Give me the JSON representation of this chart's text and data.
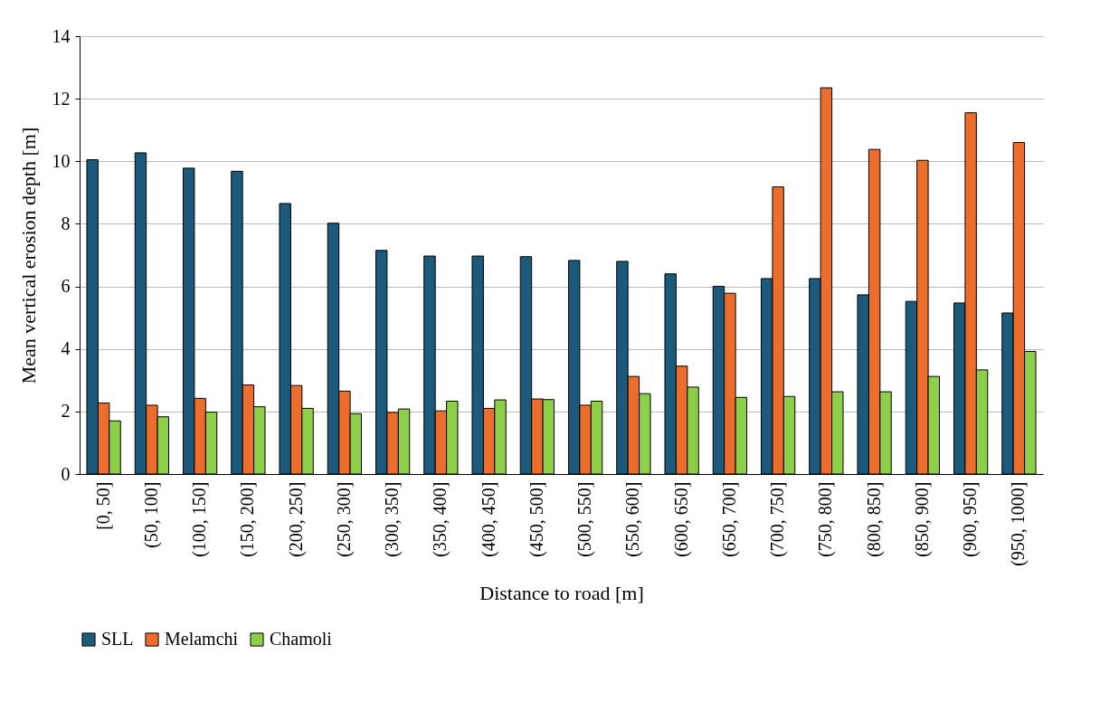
{
  "chart_data": {
    "type": "bar",
    "xlabel": "Distance to road [m]",
    "ylabel": "Mean vertical erosion depth [m]",
    "categories": [
      "[0, 50]",
      "(50, 100]",
      "(100, 150]",
      "(150, 200]",
      "(200, 250]",
      "(250, 300]",
      "(300, 350]",
      "(350, 400]",
      "(400, 450]",
      "(450, 500]",
      "(500, 550]",
      "(550, 600]",
      "(600, 650]",
      "(650, 700]",
      "(700, 750]",
      "(750, 800]",
      "(800, 850]",
      "(850, 900]",
      "(900, 950]",
      "(950, 1000]"
    ],
    "series": [
      {
        "name": "SLL",
        "color": "#1b5a7a",
        "values": [
          10.05,
          10.27,
          9.78,
          9.68,
          8.65,
          8.02,
          7.15,
          6.97,
          6.97,
          6.95,
          6.83,
          6.8,
          6.4,
          6.0,
          6.25,
          6.25,
          5.73,
          5.52,
          5.47,
          5.15
        ]
      },
      {
        "name": "Melamchi",
        "color": "#ed6e2c",
        "values": [
          2.27,
          2.2,
          2.42,
          2.85,
          2.83,
          2.65,
          1.97,
          2.02,
          2.1,
          2.4,
          2.2,
          3.12,
          3.45,
          5.78,
          9.18,
          12.35,
          10.38,
          10.03,
          11.55,
          10.6
        ]
      },
      {
        "name": "Chamoli",
        "color": "#8ecf4a",
        "values": [
          1.7,
          1.83,
          1.98,
          2.15,
          2.1,
          1.93,
          2.08,
          2.33,
          2.37,
          2.38,
          2.33,
          2.57,
          2.78,
          2.45,
          2.48,
          2.63,
          2.63,
          3.12,
          3.33,
          3.92
        ]
      }
    ],
    "ylim": [
      0,
      14
    ],
    "yticks": [
      0,
      2,
      4,
      6,
      8,
      10,
      12,
      14
    ],
    "grid": "y",
    "legend": "bottom"
  }
}
